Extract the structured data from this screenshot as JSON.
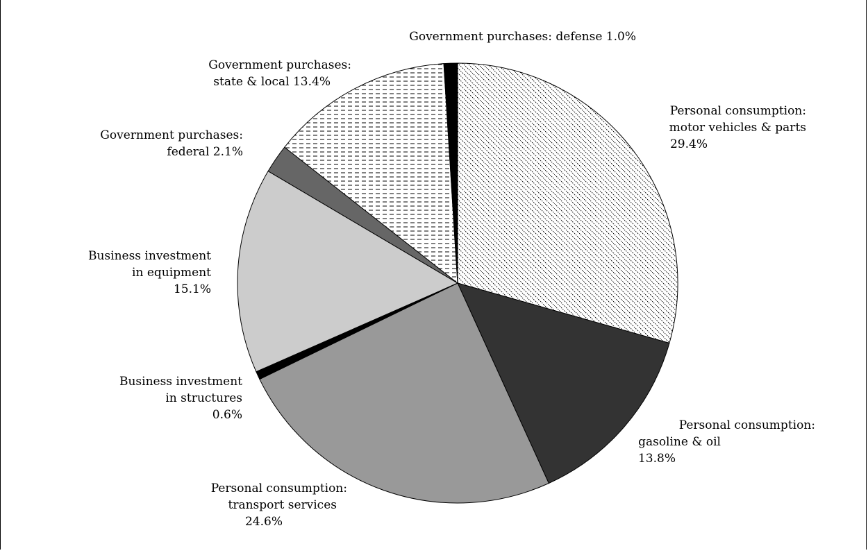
{
  "chart_data": {
    "type": "pie",
    "title": "",
    "slices": [
      {
        "key": "pc-motor-vehicles",
        "label_lines": [
          "Personal consumption:",
          "motor vehicles & parts",
          "29.4%"
        ],
        "value": 29.4,
        "fill": "pattern-diagonal-dots"
      },
      {
        "key": "pc-gasoline",
        "label_lines": [
          "Personal consumption:",
          "gasoline & oil",
          "13.8%"
        ],
        "value": 13.8,
        "fill": "#333333"
      },
      {
        "key": "pc-transport",
        "label_lines": [
          "Personal consumption:",
          "transport services",
          "24.6%"
        ],
        "value": 24.6,
        "fill": "#999999"
      },
      {
        "key": "bi-structures",
        "label_lines": [
          "Business investment",
          "in structures",
          "0.6%"
        ],
        "value": 0.6,
        "fill": "#000000"
      },
      {
        "key": "bi-equipment",
        "label_lines": [
          "Business investment",
          "in equipment",
          "15.1%"
        ],
        "value": 15.1,
        "fill": "#cccccc"
      },
      {
        "key": "gp-federal",
        "label_lines": [
          "Government purchases:",
          "federal 2.1%"
        ],
        "value": 2.1,
        "fill": "#666666"
      },
      {
        "key": "gp-state-local",
        "label_lines": [
          "Government purchases:",
          "state & local 13.4%"
        ],
        "value": 13.4,
        "fill": "pattern-horizontal-dashes"
      },
      {
        "key": "gp-defense",
        "label_lines": [
          "Government purchases: defense 1.0%"
        ],
        "value": 1.0,
        "fill": "#000000"
      }
    ],
    "start_angle_deg": 0,
    "direction": "clockwise",
    "legend": "none"
  }
}
